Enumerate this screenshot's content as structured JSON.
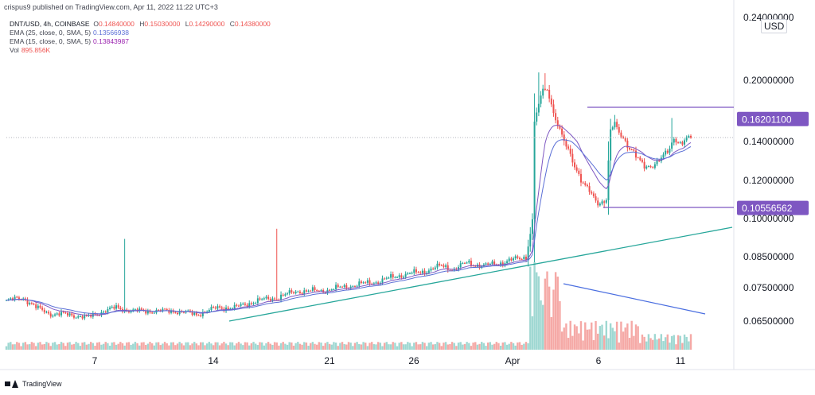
{
  "header": {
    "publisher": "crispus9 published on TradingView.com, Apr 11, 2022 11:22 UTC+3"
  },
  "legend": {
    "symbol": "DNT/USD, 4h, COINBASE",
    "ohlc": {
      "o_label": "O",
      "o": "0.14840000",
      "h_label": "H",
      "h": "0.15030000",
      "l_label": "L",
      "l": "0.14290000",
      "c_label": "C",
      "c": "0.14380000"
    },
    "ema25": {
      "label": "EMA (25, close, 0, SMA, 5)",
      "value": "0.13566938",
      "color": "#5b6fd6"
    },
    "ema15": {
      "label": "EMA (15, close, 0, SMA, 5)",
      "value": "0.13843987",
      "color": "#9c27b0"
    },
    "vol": {
      "label": "Vol",
      "value": "895.856K"
    }
  },
  "currency": "USD",
  "footer": {
    "brand": "TradingView"
  },
  "colors": {
    "up": "#26a69a",
    "down": "#ef5350",
    "up_vol": "#9fd8d2",
    "down_vol": "#f5a9a6",
    "level": "#7e57c2",
    "trend": "#26a69a",
    "voltrend": "#4a6ee0"
  },
  "chart_data": {
    "type": "candlestick",
    "y_axis": {
      "ticks": [
        "0.06500000",
        "0.07500000",
        "0.08500000",
        "0.10000000",
        "0.12000000",
        "0.14000000",
        "0.20000000",
        "0.24000000"
      ],
      "tick_values": [
        0.065,
        0.075,
        0.085,
        0.1,
        0.12,
        0.14,
        0.2,
        0.24
      ]
    },
    "x_axis": {
      "ticks": [
        "7",
        "14",
        "21",
        "26",
        "Apr",
        "6",
        "11"
      ]
    },
    "price_labels": [
      {
        "text": "0.16201100",
        "value": 0.162011
      },
      {
        "text": "0.10556562",
        "value": 0.10556562
      }
    ],
    "current_price": 0.1438,
    "anchors": [
      [
        0,
        0.071
      ],
      [
        8,
        0.072
      ],
      [
        14,
        0.069
      ],
      [
        22,
        0.067
      ],
      [
        30,
        0.067
      ],
      [
        38,
        0.066
      ],
      [
        46,
        0.068
      ],
      [
        52,
        0.069
      ],
      [
        60,
        0.068
      ],
      [
        70,
        0.068
      ],
      [
        80,
        0.068
      ],
      [
        90,
        0.067
      ],
      [
        100,
        0.069
      ],
      [
        108,
        0.069
      ],
      [
        118,
        0.071
      ],
      [
        128,
        0.072
      ],
      [
        138,
        0.074
      ],
      [
        148,
        0.074
      ],
      [
        158,
        0.075
      ],
      [
        166,
        0.076
      ],
      [
        176,
        0.077
      ],
      [
        186,
        0.079
      ],
      [
        196,
        0.08
      ],
      [
        206,
        0.082
      ],
      [
        212,
        0.081
      ],
      [
        218,
        0.083
      ],
      [
        226,
        0.082
      ],
      [
        234,
        0.083
      ],
      [
        240,
        0.084
      ],
      [
        246,
        0.085
      ],
      [
        249,
        0.099
      ],
      [
        250,
        0.16
      ],
      [
        252,
        0.175
      ],
      [
        254,
        0.192
      ],
      [
        256,
        0.19
      ],
      [
        258,
        0.178
      ],
      [
        260,
        0.16
      ],
      [
        262,
        0.152
      ],
      [
        264,
        0.139
      ],
      [
        266,
        0.136
      ],
      [
        268,
        0.13
      ],
      [
        270,
        0.126
      ],
      [
        272,
        0.12
      ],
      [
        276,
        0.114
      ],
      [
        280,
        0.108
      ],
      [
        284,
        0.11
      ],
      [
        286,
        0.15
      ],
      [
        288,
        0.158
      ],
      [
        290,
        0.148
      ],
      [
        292,
        0.144
      ],
      [
        294,
        0.138
      ],
      [
        296,
        0.136
      ],
      [
        298,
        0.132
      ],
      [
        302,
        0.127
      ],
      [
        306,
        0.128
      ],
      [
        310,
        0.131
      ],
      [
        314,
        0.136
      ],
      [
        316,
        0.143
      ],
      [
        318,
        0.14
      ],
      [
        320,
        0.139
      ],
      [
        322,
        0.143
      ],
      [
        324,
        0.144
      ]
    ],
    "ema_lines": [
      "ema15",
      "ema25"
    ]
  }
}
